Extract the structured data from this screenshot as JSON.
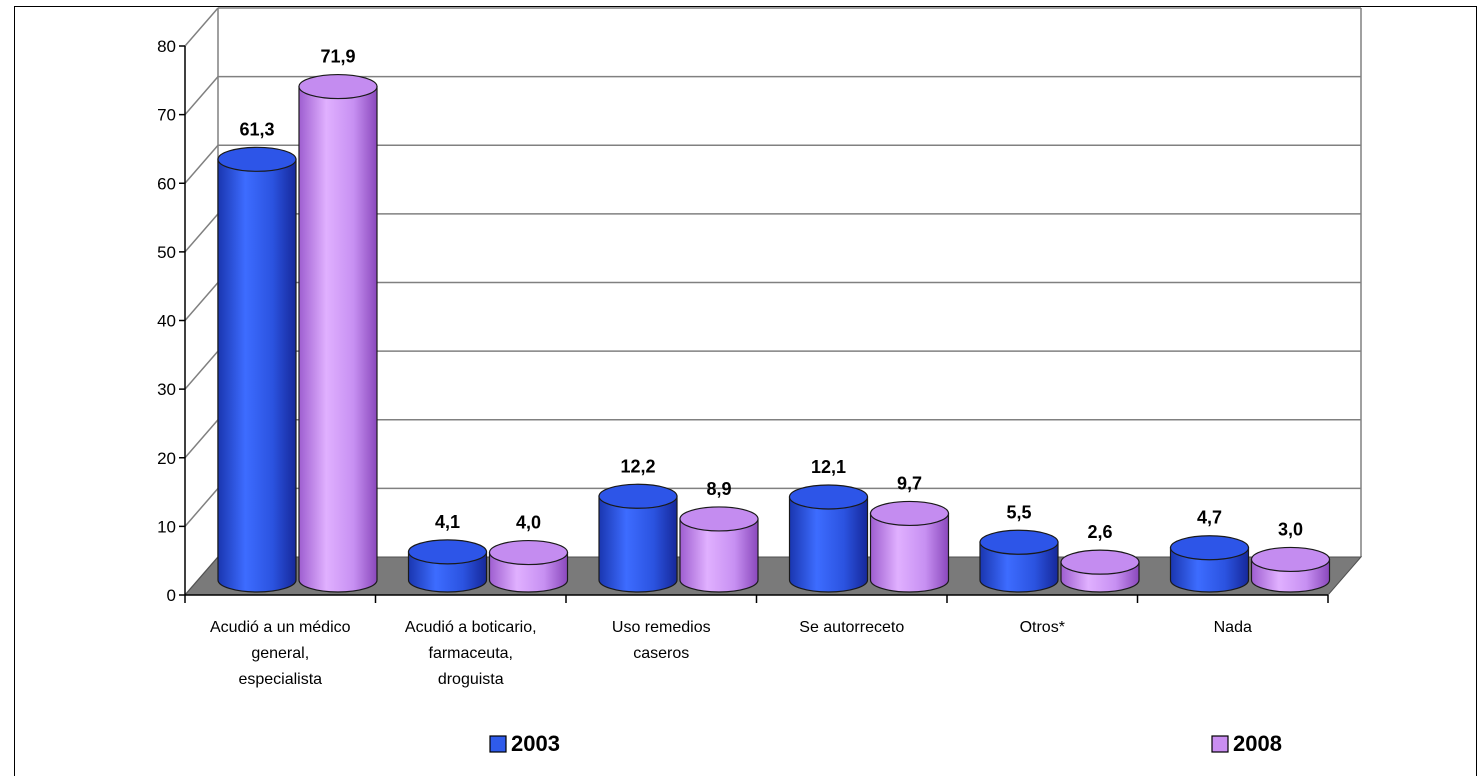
{
  "chart_data": {
    "type": "bar",
    "categories": [
      [
        "Acudió a un médico",
        "general,",
        "especialista"
      ],
      [
        "Acudió a boticario,",
        "farmaceuta,",
        "droguista"
      ],
      [
        "Uso remedios",
        "caseros"
      ],
      [
        "Se autorreceto"
      ],
      [
        "Otros*"
      ],
      [
        "Nada"
      ]
    ],
    "series": [
      {
        "name": "2003",
        "values": [
          61.3,
          4.1,
          12.2,
          12.1,
          5.5,
          4.7
        ],
        "labels": [
          "61,3",
          "4,1",
          "12,2",
          "12,1",
          "5,5",
          "4,7"
        ],
        "color": "#2f5bea"
      },
      {
        "name": "2008",
        "values": [
          71.9,
          4.0,
          8.9,
          9.7,
          2.6,
          3.0
        ],
        "labels": [
          "71,9",
          "4,0",
          "8,9",
          "9,7",
          "2,6",
          "3,0"
        ],
        "color": "#c98ef0"
      }
    ],
    "yticks": [
      "0",
      "10",
      "20",
      "30",
      "40",
      "50",
      "60",
      "70",
      "80"
    ],
    "ylim": [
      0,
      80
    ],
    "grid": true,
    "legend_position": "bottom"
  }
}
